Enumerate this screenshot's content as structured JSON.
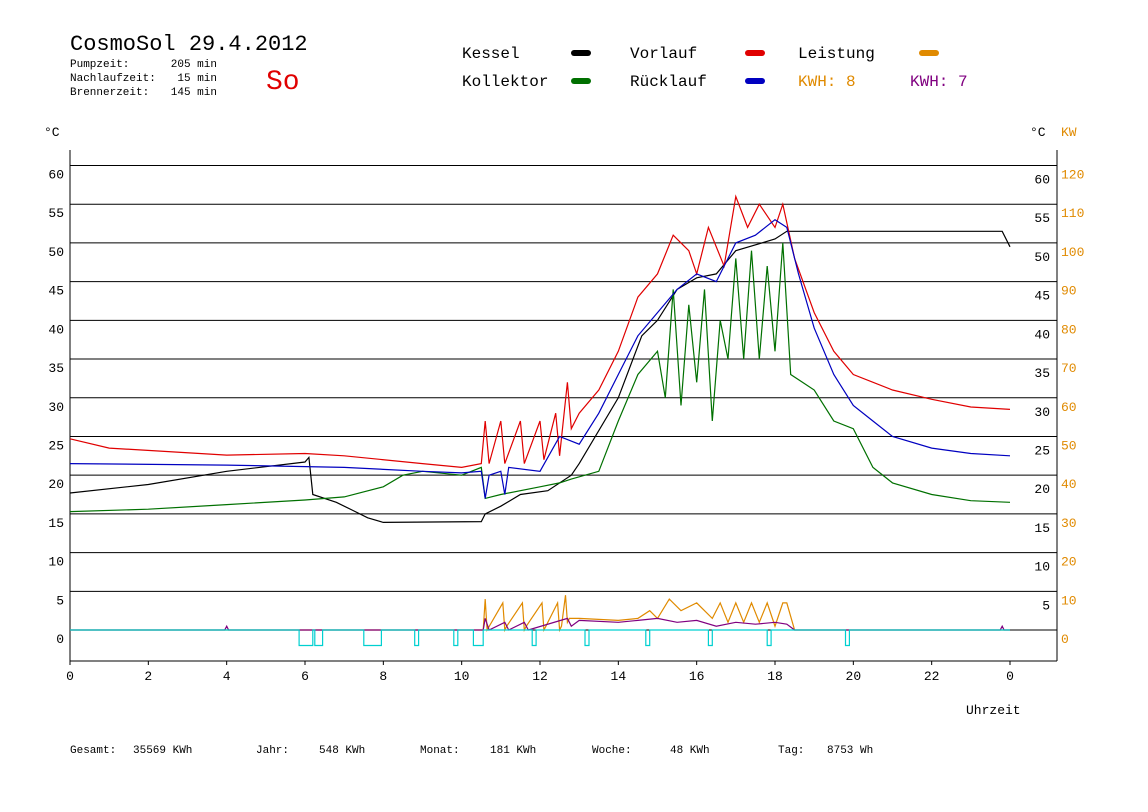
{
  "chart_data": {
    "type": "line",
    "title": "CosmoSol 29.4.2012",
    "info": [
      {
        "label": "Pumpzeit:",
        "value": "205 min"
      },
      {
        "label": "Nachlaufzeit:",
        "value": "15 min"
      },
      {
        "label": "Brennerzeit:",
        "value": "145 min"
      }
    ],
    "day": "So",
    "day_color": "#e00000",
    "annotations": [
      {
        "text": "KWH: 8",
        "color": "#e08a00"
      },
      {
        "text": "KWH: 7",
        "color": "#800080"
      }
    ],
    "y_label": "°C",
    "y2_label": "KW",
    "x_label": "Uhrzeit",
    "xlim": [
      0,
      25.2
    ],
    "xticks": [
      0,
      2,
      4,
      6,
      8,
      10,
      12,
      14,
      16,
      18,
      20,
      22,
      {
        "value": 24,
        "label": "0"
      }
    ],
    "ylim": [
      -4,
      62
    ],
    "yticks": [
      0,
      5,
      10,
      15,
      20,
      25,
      30,
      35,
      40,
      45,
      50,
      55,
      60
    ],
    "y2lim": [
      -8,
      124
    ],
    "y2ticks": [
      0,
      10,
      20,
      30,
      40,
      50,
      60,
      70,
      80,
      90,
      100,
      110,
      120
    ],
    "grid": true,
    "series": [
      {
        "name": "Kessel",
        "color": "#000000",
        "x": [
          0,
          2,
          4,
          6,
          6.1,
          6.2,
          6.8,
          7.2,
          7.6,
          8,
          10.5,
          10.6,
          11,
          11.5,
          12.2,
          12.8,
          13,
          14,
          14.6,
          15,
          15.5,
          16,
          16.5,
          17,
          18,
          18.3,
          23.8,
          24
        ],
        "values": [
          17.7,
          18.8,
          20.5,
          21.7,
          22.3,
          17.5,
          16.5,
          15.5,
          14.5,
          13.9,
          14,
          15,
          16,
          17.5,
          18,
          20,
          21.5,
          30,
          38,
          40,
          44,
          45.5,
          46,
          49,
          50.5,
          51.5,
          51.5,
          49.5
        ]
      },
      {
        "name": "Kollektor",
        "color": "#007000",
        "x": [
          0,
          2,
          4,
          6,
          7,
          8,
          8.5,
          9,
          10,
          10.5,
          10.6,
          11,
          12,
          12.5,
          12.8,
          13.5,
          14,
          14.5,
          15,
          15.2,
          15.4,
          15.6,
          15.8,
          16,
          16.2,
          16.4,
          16.6,
          16.8,
          17,
          17.2,
          17.4,
          17.6,
          17.8,
          18,
          18.2,
          18.4,
          19,
          19.5,
          20,
          20.5,
          21,
          22,
          23,
          24
        ],
        "values": [
          15.3,
          15.6,
          16.2,
          16.8,
          17.2,
          18.5,
          20,
          20.5,
          20,
          21,
          17,
          17.5,
          18.5,
          19,
          19.5,
          20.5,
          27,
          33,
          36,
          30,
          44,
          29,
          42,
          32,
          44,
          27,
          40,
          35,
          48,
          35,
          49,
          35,
          47,
          36,
          50,
          33,
          31,
          27,
          26,
          21,
          19,
          17.5,
          16.7,
          16.5
        ]
      },
      {
        "name": "Vorlauf",
        "color": "#e00000",
        "x": [
          0,
          1,
          4,
          6,
          7,
          9,
          10,
          10.5,
          10.6,
          10.7,
          11,
          11.1,
          11.5,
          11.6,
          12,
          12.1,
          12.4,
          12.5,
          12.7,
          12.8,
          13,
          13.5,
          14,
          14.5,
          15,
          15.4,
          15.8,
          16,
          16.3,
          16.7,
          17,
          17.3,
          17.6,
          18,
          18.2,
          18.5,
          19,
          19.5,
          20,
          21,
          22,
          23,
          24
        ],
        "values": [
          24.7,
          23.5,
          22.6,
          22.8,
          22.5,
          21.5,
          21,
          21.5,
          27,
          21.5,
          27,
          21.5,
          27,
          21.5,
          27,
          22,
          28,
          22.5,
          32,
          26,
          28,
          31,
          36,
          43,
          46,
          51,
          49,
          46,
          52,
          47,
          56,
          52,
          55,
          52,
          55,
          48,
          41,
          36,
          33,
          31,
          29.8,
          28.8,
          28.5
        ]
      },
      {
        "name": "Rücklauf",
        "color": "#0000c0",
        "x": [
          0,
          4,
          7,
          9,
          10,
          10.5,
          10.6,
          10.7,
          11,
          11.1,
          11.2,
          12,
          12.5,
          13,
          13.5,
          14,
          14.5,
          15,
          15.5,
          16,
          16.5,
          17,
          17.5,
          18,
          18.3,
          18.6,
          19,
          19.5,
          20,
          20.5,
          21,
          22,
          23,
          24
        ],
        "values": [
          21.5,
          21.3,
          21,
          20.5,
          20.3,
          20.5,
          17,
          20,
          20.5,
          17.5,
          21,
          20.5,
          25,
          24,
          28,
          33,
          38,
          41,
          44,
          46,
          45,
          50,
          51,
          53,
          52,
          46,
          39,
          33,
          29,
          27,
          25,
          23.5,
          22.8,
          22.5
        ]
      },
      {
        "name": "Leistung",
        "color": "#e08a00",
        "axis": "y2",
        "x": [
          0,
          10.55,
          10.6,
          10.65,
          11.05,
          11.1,
          11.15,
          11.55,
          11.6,
          11.65,
          12.05,
          12.1,
          12.15,
          12.45,
          12.5,
          12.55,
          12.65,
          12.7,
          12.75,
          13,
          14,
          14.5,
          14.8,
          15,
          15.3,
          15.6,
          16,
          16.4,
          16.6,
          16.8,
          17,
          17.2,
          17.4,
          17.6,
          17.8,
          18,
          18.2,
          18.3,
          18.5,
          24
        ],
        "values": [
          0,
          0,
          8,
          0,
          7,
          0,
          1,
          7,
          0,
          1,
          7,
          0,
          1,
          7,
          0,
          1,
          9,
          2,
          3,
          3,
          2.5,
          3,
          5,
          3,
          8,
          5,
          7,
          3,
          7,
          2,
          7,
          2,
          7,
          2,
          7,
          1,
          7,
          7,
          0,
          0
        ]
      },
      {
        "color": "#800080",
        "axis": "y2",
        "x": [
          0,
          3.95,
          4,
          4.05,
          10.55,
          10.6,
          10.7,
          11.1,
          11.2,
          11.6,
          11.7,
          12.7,
          12.8,
          13,
          14,
          14.5,
          15,
          15.5,
          16,
          16.5,
          17,
          17.5,
          18,
          18.3,
          18.5,
          23.75,
          23.8,
          23.85,
          24
        ],
        "values": [
          0,
          0,
          1,
          0,
          0,
          3,
          0,
          2,
          0,
          2,
          0,
          3,
          1,
          2.5,
          2,
          2.5,
          3,
          2,
          2.5,
          1,
          2,
          1.5,
          2,
          1.5,
          0,
          0,
          1,
          0,
          0
        ]
      },
      {
        "color": "#00d0d0",
        "x": [
          0,
          5.85,
          5.85,
          6.2,
          6.2,
          6.25,
          6.25,
          6.45,
          6.45,
          7.5,
          7.5,
          7.95,
          7.95,
          8.8,
          8.8,
          8.9,
          8.9,
          9.8,
          9.8,
          9.9,
          9.9,
          10.3,
          10.3,
          10.55,
          10.55,
          11.8,
          11.8,
          11.9,
          11.9,
          13.15,
          13.15,
          13.25,
          13.25,
          14.7,
          14.7,
          14.8,
          14.8,
          16.3,
          16.3,
          16.4,
          16.4,
          17.8,
          17.8,
          17.9,
          17.9,
          19.8,
          19.8,
          19.9,
          19.9,
          24
        ],
        "values": [
          0,
          0,
          -2,
          -2,
          0,
          0,
          -2,
          -2,
          0,
          0,
          -2,
          -2,
          0,
          0,
          -2,
          -2,
          0,
          0,
          -2,
          -2,
          0,
          0,
          -2,
          -2,
          0,
          0,
          -2,
          -2,
          0,
          0,
          -2,
          -2,
          0,
          0,
          -2,
          -2,
          0,
          0,
          -2,
          -2,
          0,
          0,
          -2,
          -2,
          0,
          0,
          -2,
          -2,
          0,
          0
        ]
      }
    ],
    "footer": [
      {
        "label": "Gesamt:",
        "value": "35569 KWh"
      },
      {
        "label": "Jahr:",
        "value": "548 KWh"
      },
      {
        "label": "Monat:",
        "value": "181 KWh"
      },
      {
        "label": "Woche:",
        "value": "48 KWh"
      },
      {
        "label": "Tag:",
        "value": "8753 Wh"
      }
    ]
  }
}
